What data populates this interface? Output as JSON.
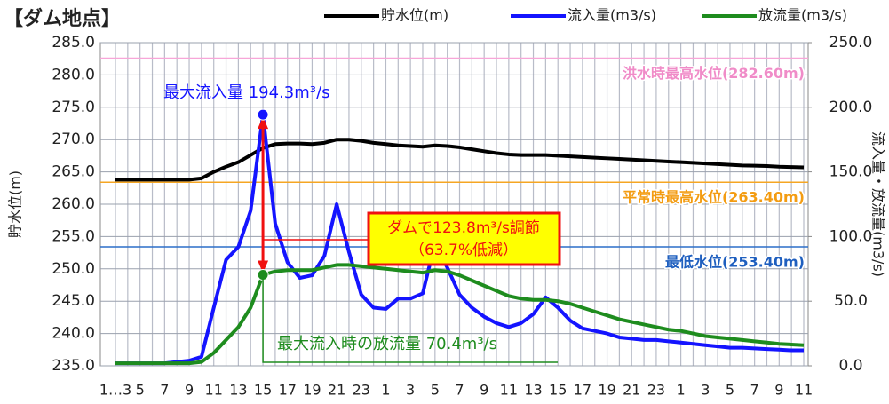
{
  "chart_data": {
    "type": "line",
    "title": "【ダム地点】",
    "y_label": "貯水位(m)",
    "y2_label": "流入量・放流量(m3/s)",
    "categories": [
      "1…3",
      null,
      "5",
      null,
      "7",
      null,
      "9",
      null,
      "11",
      null,
      "13",
      null,
      "15",
      null,
      "17",
      null,
      "19",
      null,
      "21",
      null,
      "23",
      null,
      "1",
      null,
      "3",
      null,
      "5",
      null,
      "7",
      null,
      "9",
      null,
      "11",
      null,
      "13",
      null,
      "15",
      null,
      "17",
      null,
      "19",
      null,
      "21",
      null,
      "23",
      null,
      "1",
      null,
      "3",
      null,
      "5",
      null,
      "7",
      null,
      "9",
      null,
      "11"
    ],
    "series": [
      {
        "name": "貯水位(m)",
        "color": "#000000",
        "axis": "y",
        "values": [
          263.8,
          263.8,
          263.8,
          263.8,
          263.8,
          263.8,
          263.8,
          264.0,
          265.0,
          265.8,
          266.5,
          267.6,
          268.7,
          269.3,
          269.4,
          269.4,
          269.3,
          269.5,
          270.0,
          270.0,
          269.8,
          269.5,
          269.3,
          269.1,
          269.0,
          268.9,
          269.1,
          269.0,
          268.8,
          268.5,
          268.2,
          267.9,
          267.7,
          267.6,
          267.6,
          267.6,
          267.5,
          267.4,
          267.3,
          267.2,
          267.1,
          267.0,
          266.9,
          266.8,
          266.7,
          266.6,
          266.5,
          266.4,
          266.3,
          266.2,
          266.1,
          266.0,
          265.95,
          265.9,
          265.8,
          265.75,
          265.7
        ]
      },
      {
        "name": "流入量(m3/s)",
        "color": "#1414ff",
        "axis": "y2",
        "values": [
          2,
          2,
          2,
          2,
          2,
          3,
          4,
          7,
          45,
          82,
          92,
          120,
          194.3,
          110,
          80,
          68,
          70,
          85,
          125,
          88,
          55,
          45,
          44,
          52,
          52,
          56,
          95,
          76,
          55,
          45,
          38,
          33,
          30,
          33,
          40,
          53,
          45,
          35,
          29,
          27,
          25,
          22,
          21,
          20,
          20,
          19,
          18,
          17,
          16,
          15,
          14,
          14,
          13.5,
          13,
          12.5,
          12,
          12
        ]
      },
      {
        "name": "放流量(m3/s)",
        "color": "#1e8c1e",
        "axis": "y2",
        "values": [
          2,
          2,
          2,
          2,
          2,
          2,
          2,
          3,
          10,
          20,
          30,
          45,
          70.4,
          73,
          74,
          74,
          74,
          76,
          78,
          78,
          77,
          76,
          75,
          74,
          73,
          72,
          74,
          73,
          70,
          66,
          62,
          58,
          54,
          52,
          51,
          51,
          50,
          48,
          45,
          42,
          39,
          36,
          34,
          32,
          30,
          28,
          27,
          25,
          23,
          22,
          21,
          20,
          19,
          18,
          17,
          16.5,
          16
        ]
      }
    ],
    "ylim": [
      235,
      285
    ],
    "yticks": [
      {
        "value": 235,
        "label": "235.0"
      },
      {
        "value": 240,
        "label": "240.0"
      },
      {
        "value": 245,
        "label": "245.0"
      },
      {
        "value": 250,
        "label": "250.0"
      },
      {
        "value": 255,
        "label": "255.0"
      },
      {
        "value": 260,
        "label": "260.0"
      },
      {
        "value": 265,
        "label": "265.0"
      },
      {
        "value": 270,
        "label": "270.0"
      },
      {
        "value": 275,
        "label": "275.0"
      },
      {
        "value": 280,
        "label": "280.0"
      },
      {
        "value": 285,
        "label": "285.0"
      }
    ],
    "y2lim": [
      0,
      250
    ],
    "y2ticks": [
      {
        "value": 0,
        "label": "0.0"
      },
      {
        "value": 50,
        "label": "50.0"
      },
      {
        "value": 100,
        "label": "100.0"
      },
      {
        "value": 150,
        "label": "150.0"
      },
      {
        "value": 200,
        "label": "200.0"
      },
      {
        "value": 250,
        "label": "250.0"
      }
    ],
    "grid": true,
    "legend": "top",
    "reference_lines": [
      {
        "value": 282.6,
        "label": "洪水時最高水位(282.60m)",
        "color": "#f7a6d8",
        "text_color": "#f08cc8"
      },
      {
        "value": 263.4,
        "label": "平常時最高水位(263.40m)",
        "color": "#f5a623",
        "text_color": "#f39c12"
      },
      {
        "value": 253.4,
        "label": "最低水位(253.40m)",
        "color": "#2c6fc9",
        "text_color": "#1f5fbf"
      }
    ],
    "annotations": {
      "max_inflow": "最大流入量 194.3m³/s",
      "regulation": [
        "ダムで123.8m³/s調節",
        "（63.7%低減）"
      ],
      "outflow_at_max": "最大流入時の放流量 70.4m³/s"
    }
  }
}
